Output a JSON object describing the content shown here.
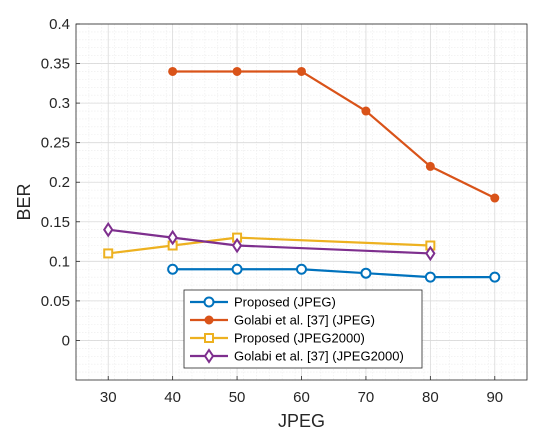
{
  "chart_data": {
    "type": "line",
    "xlabel": "JPEG",
    "ylabel": "BER",
    "xlim": [
      25,
      95
    ],
    "ylim": [
      -0.05,
      0.4
    ],
    "xticks": [
      30,
      40,
      50,
      60,
      70,
      80,
      90
    ],
    "yticks": [
      0,
      0.05,
      0.1,
      0.15,
      0.2,
      0.25,
      0.3,
      0.35,
      0.4
    ],
    "xtick_labels": [
      "30",
      "40",
      "50",
      "60",
      "70",
      "80",
      "90"
    ],
    "ytick_labels": [
      "0",
      "0.05",
      "0.1",
      "0.15",
      "0.2",
      "0.25",
      "0.3",
      "0.35",
      "0.4"
    ],
    "grid": true,
    "minor_grid": true,
    "legend_position": "bottom-center",
    "series": [
      {
        "name": "Proposed (JPEG)",
        "color": "#0072BD",
        "marker": "circle-open",
        "x": [
          40,
          50,
          60,
          70,
          80,
          90
        ],
        "y": [
          0.09,
          0.09,
          0.09,
          0.085,
          0.08,
          0.08
        ]
      },
      {
        "name": "Golabi et al. [37] (JPEG)",
        "color": "#D95319",
        "marker": "circle-filled",
        "x": [
          40,
          50,
          60,
          70,
          80,
          90
        ],
        "y": [
          0.34,
          0.34,
          0.34,
          0.29,
          0.22,
          0.18
        ]
      },
      {
        "name": "Proposed (JPEG2000)",
        "color": "#EDB120",
        "marker": "square-open",
        "x": [
          30,
          40,
          50,
          80
        ],
        "y": [
          0.11,
          0.12,
          0.13,
          0.12
        ]
      },
      {
        "name": "Golabi et al. [37] (JPEG2000)",
        "color": "#7E2F8E",
        "marker": "diamond-open",
        "x": [
          30,
          40,
          50,
          80
        ],
        "y": [
          0.14,
          0.13,
          0.12,
          0.11
        ]
      }
    ]
  }
}
